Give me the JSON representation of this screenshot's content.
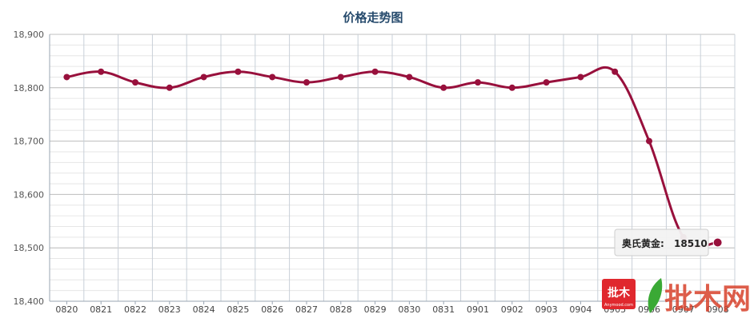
{
  "chart_data": {
    "type": "line",
    "title": "价格走势图",
    "categories": [
      "0820",
      "0821",
      "0822",
      "0823",
      "0824",
      "0825",
      "0826",
      "0827",
      "0828",
      "0829",
      "0830",
      "0831",
      "0901",
      "0902",
      "0903",
      "0904",
      "0905",
      "0906",
      "0907",
      "0908"
    ],
    "series": [
      {
        "name": "奥氏黄金",
        "values": [
          18820,
          18830,
          18810,
          18800,
          18820,
          18830,
          18820,
          18810,
          18820,
          18830,
          18820,
          18800,
          18810,
          18800,
          18810,
          18820,
          18830,
          18700,
          18520,
          18510
        ],
        "color": "#98103c"
      }
    ],
    "ylim": [
      18400,
      18900
    ],
    "yticks": [
      18400,
      18500,
      18600,
      18700,
      18800,
      18900
    ],
    "ytick_labels": [
      "18,400",
      "18,500",
      "18,600",
      "18,700",
      "18,800",
      "18,900"
    ],
    "grid": true,
    "tooltip": {
      "label": "奥氏黄金:",
      "value": "18510"
    }
  },
  "watermark": {
    "badge_text": "批木",
    "badge_subtext": "Anymood.com",
    "big_text": "批木网",
    "badge_color": "#e0282e",
    "text_color": "#d8412b",
    "leaf_color": "#3aa935"
  }
}
